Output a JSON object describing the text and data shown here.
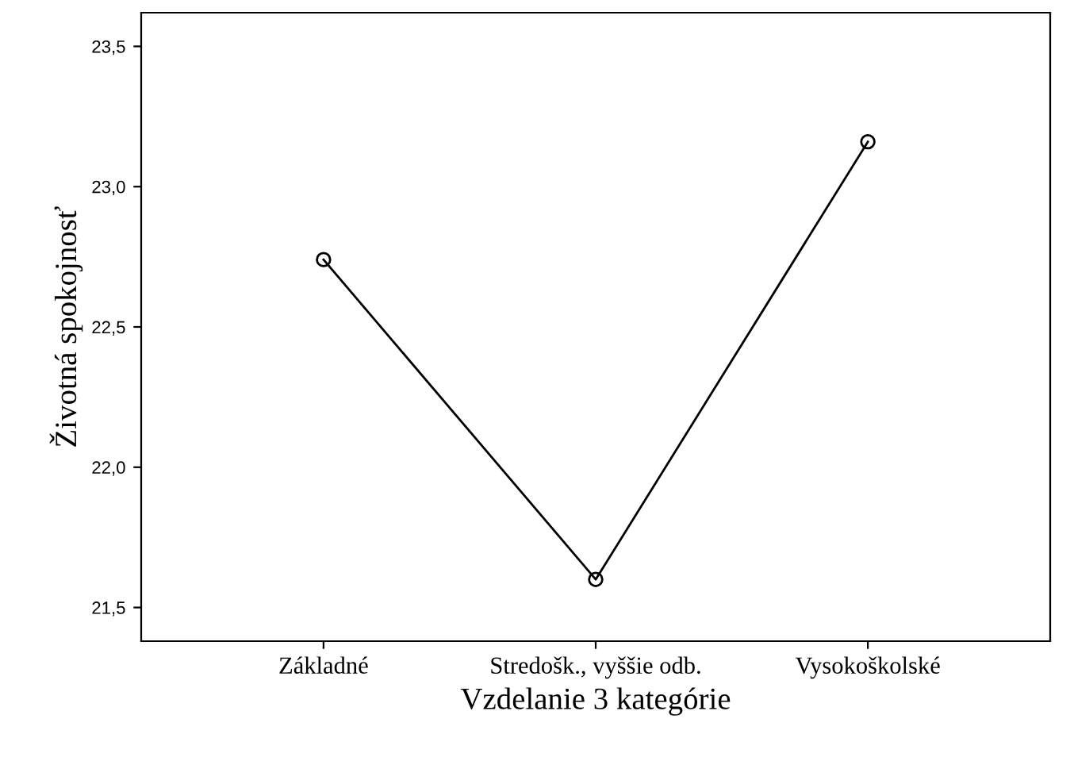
{
  "chart_data": {
    "type": "line",
    "xlabel": "Vzdelanie 3 kategórie",
    "ylabel": "Životná spokojnosť",
    "categories": [
      "Základné",
      "Stredošk., vyššie odb.",
      "Vysokoškolské"
    ],
    "series": [
      {
        "color": "#000000",
        "values": [
          22.74,
          21.6,
          23.16
        ]
      }
    ],
    "ylim": [
      21.38,
      23.62
    ],
    "yticks": [
      {
        "value": 21.5,
        "label": "21,5"
      },
      {
        "value": 22.0,
        "label": "22,0"
      },
      {
        "value": 22.5,
        "label": "22,5"
      },
      {
        "value": 23.0,
        "label": "23,0"
      },
      {
        "value": 23.5,
        "label": "23,5"
      }
    ],
    "marker": "circle",
    "line_style": "solid",
    "grid": false,
    "legend": false
  }
}
